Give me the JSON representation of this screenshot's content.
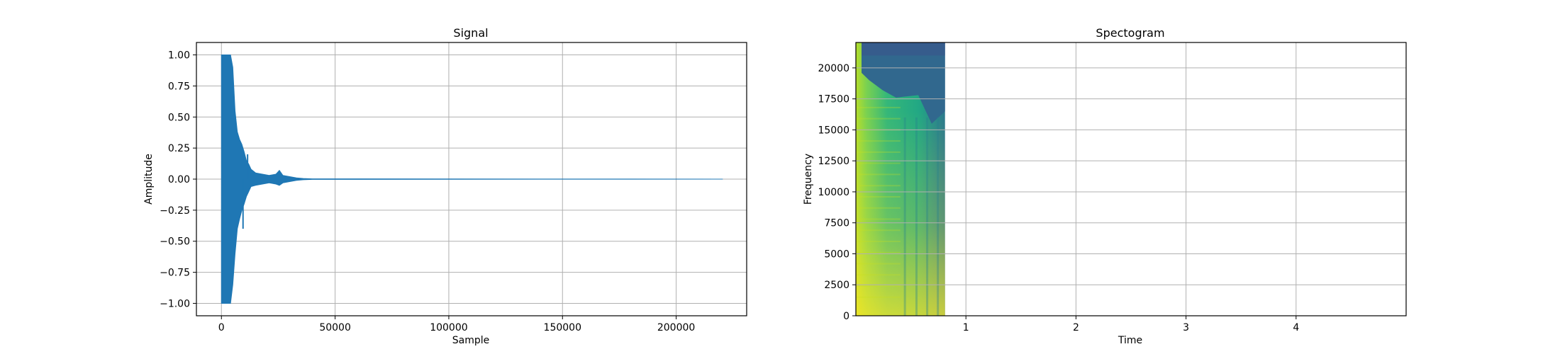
{
  "chart_data": [
    {
      "type": "line",
      "title": "Signal",
      "xlabel": "Sample",
      "ylabel": "Amplitude",
      "xlim": [
        -11000,
        231000
      ],
      "ylim": [
        -1.1,
        1.1
      ],
      "grid": true,
      "color": "#1f77b4",
      "xticks": [
        0,
        50000,
        100000,
        150000,
        200000
      ],
      "xtick_labels": [
        "0",
        "50000",
        "100000",
        "150000",
        "200000"
      ],
      "yticks": [
        1.0,
        0.75,
        0.5,
        0.25,
        0.0,
        -0.25,
        -0.5,
        -0.75,
        -1.0
      ],
      "ytick_labels": [
        "1.00",
        "0.75",
        "0.50",
        "0.25",
        "0.00",
        "−0.25",
        "−0.50",
        "−0.75",
        "−1.00"
      ],
      "envelope": {
        "x": [
          0,
          1000,
          2000,
          3000,
          4000,
          5000,
          6000,
          7000,
          8000,
          9000,
          10000,
          11000,
          12000,
          13000,
          15000,
          18000,
          21000,
          24000,
          25500,
          27000,
          30000,
          33000,
          36000,
          40000,
          220500
        ],
        "max": [
          1.0,
          1.0,
          1.0,
          1.0,
          1.0,
          0.9,
          0.55,
          0.38,
          0.32,
          0.28,
          0.22,
          0.15,
          0.12,
          0.08,
          0.05,
          0.04,
          0.03,
          0.04,
          0.07,
          0.03,
          0.02,
          0.01,
          0.005,
          0.002,
          0.0
        ],
        "min": [
          -1.0,
          -1.0,
          -1.0,
          -1.0,
          -1.0,
          -0.85,
          -0.6,
          -0.4,
          -0.32,
          -0.25,
          -0.2,
          -0.14,
          -0.1,
          -0.06,
          -0.05,
          -0.04,
          -0.03,
          -0.04,
          -0.05,
          -0.03,
          -0.02,
          -0.01,
          -0.005,
          -0.002,
          0.0
        ]
      },
      "spikes": [
        {
          "x": 9500,
          "min": -0.4
        },
        {
          "x": 11500,
          "max": 0.2
        }
      ]
    },
    {
      "type": "heatmap",
      "title": "Spectogram",
      "xlabel": "Time",
      "ylabel": "Frequency",
      "xlim": [
        0,
        5.0
      ],
      "ylim": [
        0,
        22050
      ],
      "data_xlim": [
        0,
        0.81
      ],
      "grid": true,
      "colormap": "viridis",
      "xticks": [
        1,
        2,
        3,
        4
      ],
      "xtick_labels": [
        "1",
        "2",
        "3",
        "4"
      ],
      "yticks": [
        0,
        2500,
        5000,
        7500,
        10000,
        12500,
        15000,
        17500,
        20000
      ],
      "ytick_labels": [
        "0",
        "2500",
        "5000",
        "7500",
        "10000",
        "12500",
        "15000",
        "17500",
        "20000"
      ]
    }
  ]
}
